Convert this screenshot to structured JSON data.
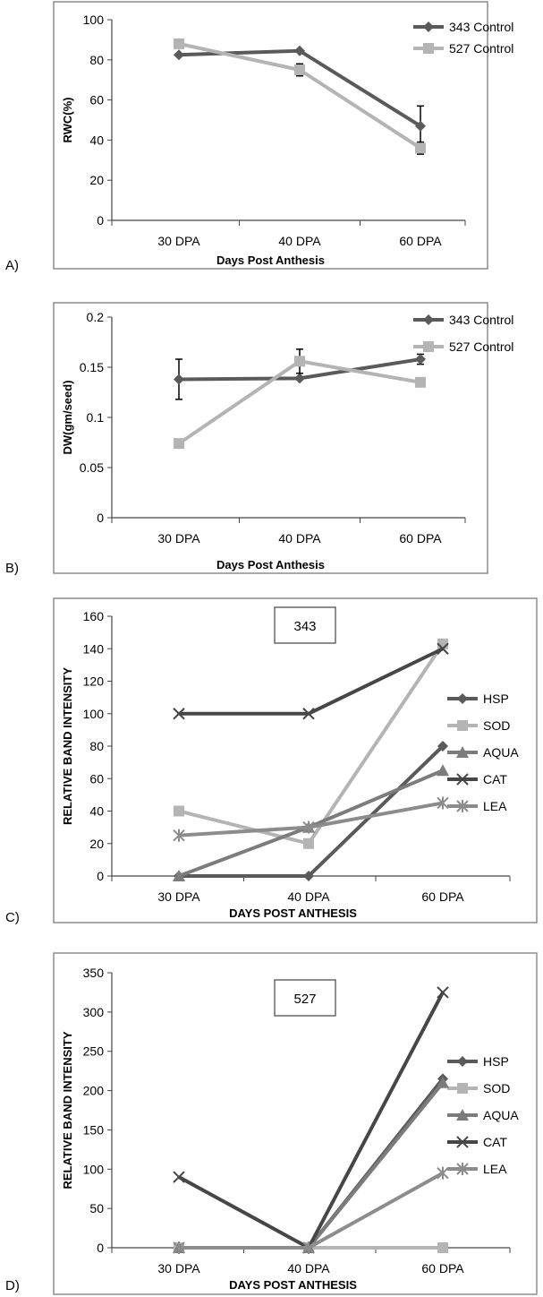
{
  "panel_letters": [
    "A)",
    "B)",
    "C)",
    "D)"
  ],
  "colors": {
    "dark": "#5a5a5a",
    "light": "#b4b4b4",
    "mid": "#7c7c7c",
    "cat": "#464646",
    "lea": "#8c8c8c"
  },
  "chart_data": [
    {
      "type": "line",
      "panel": "A)",
      "categories": [
        "30 DPA",
        "40 DPA",
        "60 DPA"
      ],
      "xlabel": "Days Post Anthesis",
      "ylabel": "RWC(%)",
      "ylim": [
        0,
        100
      ],
      "yticks": [
        "0",
        "20",
        "40",
        "60",
        "80",
        "100"
      ],
      "legend_position": "top-right",
      "series": [
        {
          "name": "343 Control",
          "values": [
            82.5,
            84.5,
            47
          ],
          "errors": [
            0,
            0,
            10
          ],
          "marker": "diamond",
          "color": "#5a5a5a"
        },
        {
          "name": "527 Control",
          "values": [
            88,
            75,
            36
          ],
          "errors": [
            0,
            3,
            3
          ],
          "marker": "square",
          "color": "#b4b4b4"
        }
      ]
    },
    {
      "type": "line",
      "panel": "B)",
      "categories": [
        "30 DPA",
        "40 DPA",
        "60 DPA"
      ],
      "xlabel": "Days Post Anthesis",
      "ylabel": "DW(gm/seed)",
      "ylim": [
        0,
        0.2
      ],
      "yticks": [
        "0",
        "0.05",
        "0.1",
        "0.15",
        "0.2"
      ],
      "legend_position": "top-right",
      "series": [
        {
          "name": "343 Control",
          "values": [
            0.138,
            0.139,
            0.158
          ],
          "errors": [
            0.02,
            0,
            0.005
          ],
          "marker": "diamond",
          "color": "#5a5a5a"
        },
        {
          "name": "527 Control",
          "values": [
            0.074,
            0.156,
            0.135
          ],
          "errors": [
            0,
            0.012,
            0
          ],
          "marker": "square",
          "color": "#b4b4b4"
        }
      ]
    },
    {
      "type": "line",
      "panel": "C)",
      "box_label": "343",
      "categories": [
        "30 DPA",
        "40 DPA",
        "60 DPA"
      ],
      "xlabel": "DAYS POST ANTHESIS",
      "ylabel": "RELATIVE BAND INTENSITY",
      "ylim": [
        0,
        160
      ],
      "yticks": [
        "0",
        "20",
        "40",
        "60",
        "80",
        "100",
        "120",
        "140",
        "160"
      ],
      "legend_position": "right",
      "series": [
        {
          "name": "HSP",
          "values": [
            0,
            0,
            80
          ],
          "marker": "diamond",
          "color": "#5a5a5a"
        },
        {
          "name": "SOD",
          "values": [
            40,
            20,
            143
          ],
          "marker": "square",
          "color": "#b4b4b4"
        },
        {
          "name": "AQUA",
          "values": [
            0,
            30,
            65
          ],
          "marker": "triangle",
          "color": "#7c7c7c"
        },
        {
          "name": "CAT",
          "values": [
            100,
            100,
            140
          ],
          "marker": "x",
          "color": "#464646"
        },
        {
          "name": "LEA",
          "values": [
            25,
            30,
            45
          ],
          "marker": "star",
          "color": "#8c8c8c"
        }
      ]
    },
    {
      "type": "line",
      "panel": "D)",
      "box_label": "527",
      "categories": [
        "30 DPA",
        "40 DPA",
        "60 DPA"
      ],
      "xlabel": "DAYS POST ANTHESIS",
      "ylabel": "RELATIVE BAND INTENSITY",
      "ylim": [
        0,
        350
      ],
      "yticks": [
        "0",
        "50",
        "100",
        "150",
        "200",
        "250",
        "300",
        "350"
      ],
      "legend_position": "right",
      "series": [
        {
          "name": "HSP",
          "values": [
            0,
            0,
            215
          ],
          "marker": "diamond",
          "color": "#5a5a5a"
        },
        {
          "name": "SOD",
          "values": [
            0,
            0,
            0
          ],
          "marker": "square",
          "color": "#b4b4b4"
        },
        {
          "name": "AQUA",
          "values": [
            0,
            0,
            210
          ],
          "marker": "triangle",
          "color": "#7c7c7c"
        },
        {
          "name": "CAT",
          "values": [
            90,
            0,
            325
          ],
          "marker": "x",
          "color": "#464646"
        },
        {
          "name": "LEA",
          "values": [
            0,
            0,
            95
          ],
          "marker": "star",
          "color": "#8c8c8c"
        }
      ]
    }
  ]
}
